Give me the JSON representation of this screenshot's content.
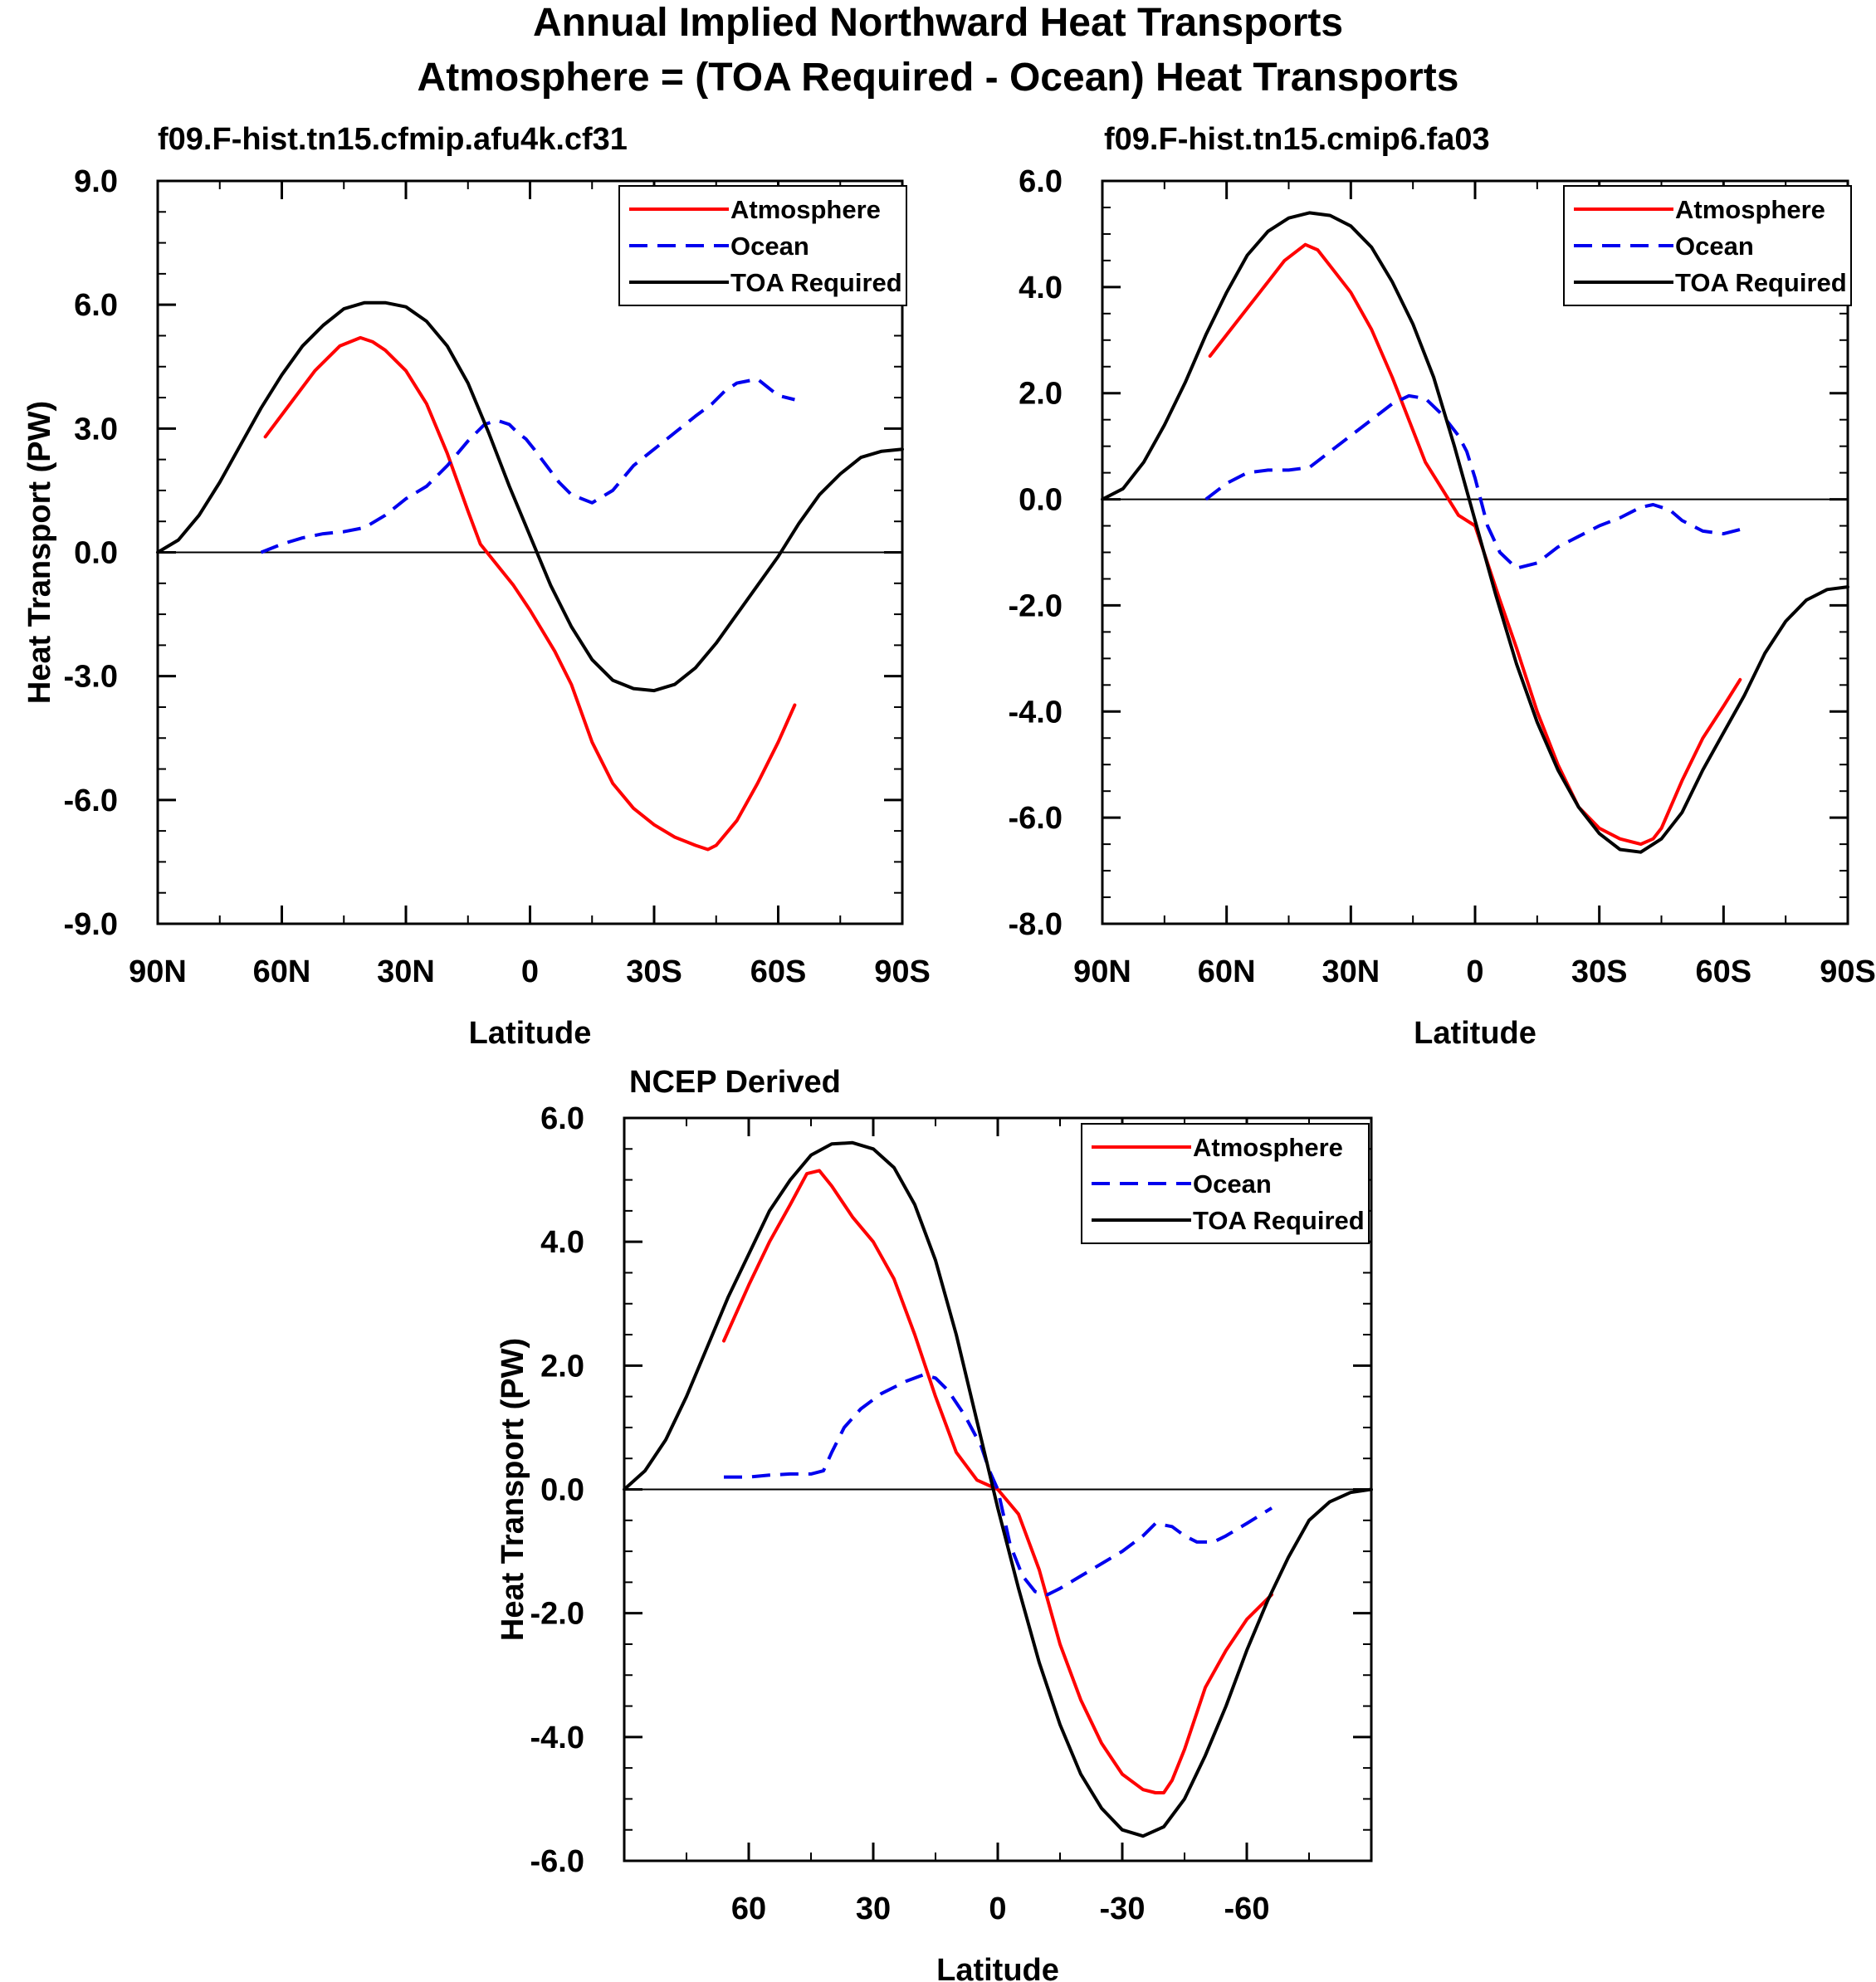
{
  "figure": {
    "title_line1": "Annual Implied Northward Heat Transports",
    "title_line2": "Atmosphere = (TOA Required - Ocean) Heat Transports"
  },
  "colors": {
    "atmosphere": "#ff0000",
    "ocean": "#0000ee",
    "toa": "#000000"
  },
  "chart_data": [
    {
      "type": "line",
      "title": "f09.F-hist.tn15.cfmip.afu4k.cf31",
      "xlabel": "Latitude",
      "ylabel": "Heat Transport (PW)",
      "xlim": [
        90,
        -90
      ],
      "ylim": [
        -9,
        9
      ],
      "xticks": [
        90,
        60,
        30,
        0,
        -30,
        -60,
        -90
      ],
      "xticklabels": [
        "90N",
        "60N",
        "30N",
        "0",
        "30S",
        "60S",
        "90S"
      ],
      "yticks": [
        -9,
        -6,
        -3,
        0,
        3,
        6,
        9
      ],
      "yticklabels": [
        "-9.0",
        "-6.0",
        "-3.0",
        "0.0",
        "3.0",
        "6.0",
        "9.0"
      ],
      "legend": [
        "Atmosphere",
        "Ocean",
        "TOA Required"
      ],
      "series": [
        {
          "name": "Atmosphere",
          "color": "#ff0000",
          "dash": "solid",
          "x": [
            64,
            58,
            52,
            46,
            41,
            38,
            35,
            30,
            25,
            20,
            15,
            12,
            8,
            4,
            0,
            -3,
            -6,
            -10,
            -15,
            -20,
            -25,
            -30,
            -35,
            -40,
            -43,
            -45,
            -50,
            -55,
            -60,
            -64
          ],
          "y": [
            2.8,
            3.6,
            4.4,
            5.0,
            5.2,
            5.1,
            4.9,
            4.4,
            3.6,
            2.4,
            1.0,
            0.2,
            -0.3,
            -0.8,
            -1.4,
            -1.9,
            -2.4,
            -3.2,
            -4.6,
            -5.6,
            -6.2,
            -6.6,
            -6.9,
            -7.1,
            -7.2,
            -7.1,
            -6.5,
            -5.6,
            -4.6,
            -3.7
          ]
        },
        {
          "name": "Ocean",
          "color": "#0000ee",
          "dash": "dashed",
          "x": [
            65,
            60,
            55,
            50,
            45,
            40,
            35,
            30,
            25,
            20,
            15,
            11,
            8,
            5,
            3,
            1,
            -1,
            -4,
            -7,
            -10,
            -15,
            -20,
            -25,
            -30,
            -35,
            -40,
            -44,
            -47,
            -50,
            -55,
            -60,
            -64
          ],
          "y": [
            0.0,
            0.2,
            0.35,
            0.45,
            0.5,
            0.6,
            0.9,
            1.3,
            1.6,
            2.1,
            2.7,
            3.1,
            3.2,
            3.1,
            2.9,
            2.75,
            2.5,
            2.1,
            1.7,
            1.4,
            1.2,
            1.5,
            2.1,
            2.5,
            2.9,
            3.3,
            3.6,
            3.9,
            4.1,
            4.2,
            3.8,
            3.7
          ]
        },
        {
          "name": "TOA Required",
          "color": "#000000",
          "dash": "solid",
          "x": [
            90,
            85,
            80,
            75,
            70,
            65,
            60,
            55,
            50,
            45,
            40,
            35,
            30,
            25,
            20,
            15,
            10,
            5,
            0,
            -5,
            -10,
            -15,
            -20,
            -25,
            -30,
            -35,
            -40,
            -45,
            -50,
            -55,
            -60,
            -65,
            -70,
            -75,
            -80,
            -85,
            -90
          ],
          "y": [
            0.0,
            0.3,
            0.9,
            1.7,
            2.6,
            3.5,
            4.3,
            5.0,
            5.5,
            5.9,
            6.05,
            6.05,
            5.95,
            5.6,
            5.0,
            4.1,
            2.9,
            1.6,
            0.4,
            -0.8,
            -1.8,
            -2.6,
            -3.1,
            -3.3,
            -3.35,
            -3.2,
            -2.8,
            -2.2,
            -1.5,
            -0.8,
            -0.1,
            0.7,
            1.4,
            1.9,
            2.3,
            2.45,
            2.5
          ]
        }
      ]
    },
    {
      "type": "line",
      "title": "f09.F-hist.tn15.cmip6.fa03",
      "xlabel": "Latitude",
      "ylabel": "",
      "xlim": [
        90,
        -90
      ],
      "ylim": [
        -8,
        6
      ],
      "xticks": [
        90,
        60,
        30,
        0,
        -30,
        -60,
        -90
      ],
      "xticklabels": [
        "90N",
        "60N",
        "30N",
        "0",
        "30S",
        "60S",
        "90S"
      ],
      "yticks": [
        -8,
        -6,
        -4,
        -2,
        0,
        2,
        4,
        6
      ],
      "yticklabels": [
        "-8.0",
        "-6.0",
        "-4.0",
        "-2.0",
        "0.0",
        "2.0",
        "4.0",
        "6.0"
      ],
      "legend": [
        "Atmosphere",
        "Ocean",
        "TOA Required"
      ],
      "series": [
        {
          "name": "Atmosphere",
          "color": "#ff0000",
          "dash": "solid",
          "x": [
            64,
            58,
            52,
            46,
            41,
            38,
            35,
            30,
            25,
            20,
            15,
            12,
            8,
            4,
            0,
            -3,
            -6,
            -10,
            -15,
            -20,
            -25,
            -30,
            -35,
            -40,
            -43,
            -45,
            -50,
            -55,
            -60,
            -64
          ],
          "y": [
            2.7,
            3.3,
            3.9,
            4.5,
            4.8,
            4.7,
            4.4,
            3.9,
            3.2,
            2.3,
            1.3,
            0.7,
            0.2,
            -0.3,
            -0.5,
            -1.2,
            -1.9,
            -2.8,
            -4.0,
            -5.0,
            -5.8,
            -6.2,
            -6.4,
            -6.5,
            -6.4,
            -6.2,
            -5.3,
            -4.5,
            -3.9,
            -3.4
          ]
        },
        {
          "name": "Ocean",
          "color": "#0000ee",
          "dash": "dashed",
          "x": [
            65,
            60,
            55,
            50,
            45,
            40,
            35,
            30,
            25,
            20,
            16,
            12,
            8,
            4,
            2,
            0,
            -3,
            -6,
            -10,
            -15,
            -20,
            -25,
            -30,
            -35,
            -40,
            -43,
            -47,
            -50,
            -55,
            -60,
            -65
          ],
          "y": [
            0.0,
            0.3,
            0.5,
            0.55,
            0.55,
            0.6,
            0.9,
            1.2,
            1.5,
            1.8,
            1.95,
            1.9,
            1.6,
            1.2,
            0.9,
            0.4,
            -0.5,
            -1.0,
            -1.3,
            -1.2,
            -0.9,
            -0.7,
            -0.5,
            -0.35,
            -0.15,
            -0.1,
            -0.2,
            -0.4,
            -0.6,
            -0.65,
            -0.55
          ]
        },
        {
          "name": "TOA Required",
          "color": "#000000",
          "dash": "solid",
          "x": [
            90,
            85,
            80,
            75,
            70,
            65,
            60,
            55,
            50,
            45,
            40,
            35,
            30,
            25,
            20,
            15,
            10,
            5,
            0,
            -5,
            -10,
            -15,
            -20,
            -25,
            -30,
            -35,
            -40,
            -45,
            -50,
            -55,
            -60,
            -65,
            -70,
            -75,
            -80,
            -85,
            -90
          ],
          "y": [
            0.0,
            0.2,
            0.7,
            1.4,
            2.2,
            3.1,
            3.9,
            4.6,
            5.05,
            5.3,
            5.4,
            5.35,
            5.15,
            4.75,
            4.1,
            3.3,
            2.3,
            1.0,
            -0.4,
            -1.8,
            -3.1,
            -4.2,
            -5.1,
            -5.8,
            -6.3,
            -6.6,
            -6.65,
            -6.4,
            -5.9,
            -5.1,
            -4.4,
            -3.7,
            -2.9,
            -2.3,
            -1.9,
            -1.7,
            -1.65
          ]
        }
      ]
    },
    {
      "type": "line",
      "title": "NCEP Derived",
      "xlabel": "Latitude",
      "ylabel": "Heat Transport (PW)",
      "xlim": [
        90,
        -90
      ],
      "ylim": [
        -6,
        6
      ],
      "xticks": [
        60,
        30,
        0,
        -30,
        -60
      ],
      "xticklabels": [
        "60",
        "30",
        "0",
        "-30",
        "-60"
      ],
      "yticks": [
        -6,
        -4,
        -2,
        0,
        2,
        4,
        6
      ],
      "yticklabels": [
        "-6.0",
        "-4.0",
        "-2.0",
        "0.0",
        "2.0",
        "4.0",
        "6.0"
      ],
      "legend": [
        "Atmosphere",
        "Ocean",
        "TOA Required"
      ],
      "series": [
        {
          "name": "Atmosphere",
          "color": "#ff0000",
          "dash": "solid",
          "x": [
            66,
            60,
            55,
            50,
            46,
            43,
            40,
            35,
            30,
            25,
            20,
            15,
            10,
            5,
            0,
            -5,
            -10,
            -15,
            -20,
            -25,
            -30,
            -35,
            -38,
            -40,
            -42,
            -45,
            -50,
            -55,
            -60,
            -66
          ],
          "y": [
            2.4,
            3.3,
            4.0,
            4.6,
            5.1,
            5.15,
            4.9,
            4.4,
            4.0,
            3.4,
            2.5,
            1.5,
            0.6,
            0.15,
            0.0,
            -0.4,
            -1.3,
            -2.5,
            -3.4,
            -4.1,
            -4.6,
            -4.85,
            -4.9,
            -4.9,
            -4.7,
            -4.2,
            -3.2,
            -2.6,
            -2.1,
            -1.7
          ]
        },
        {
          "name": "Ocean",
          "color": "#0000ee",
          "dash": "dashed",
          "x": [
            66,
            60,
            55,
            50,
            45,
            42,
            40,
            37,
            33,
            28,
            22,
            18,
            15,
            12,
            8,
            4,
            2,
            0,
            -3,
            -6,
            -9,
            -12,
            -15,
            -20,
            -25,
            -30,
            -35,
            -38,
            -42,
            -45,
            -48,
            -52,
            -55,
            -60,
            -66
          ],
          "y": [
            0.2,
            0.2,
            0.23,
            0.25,
            0.25,
            0.3,
            0.6,
            1.0,
            1.3,
            1.55,
            1.75,
            1.85,
            1.8,
            1.6,
            1.2,
            0.7,
            0.3,
            0.0,
            -0.9,
            -1.4,
            -1.65,
            -1.7,
            -1.6,
            -1.4,
            -1.2,
            -1.0,
            -0.75,
            -0.55,
            -0.6,
            -0.75,
            -0.85,
            -0.85,
            -0.75,
            -0.55,
            -0.3
          ]
        },
        {
          "name": "TOA Required",
          "color": "#000000",
          "dash": "solid",
          "x": [
            90,
            85,
            80,
            75,
            70,
            65,
            60,
            55,
            50,
            45,
            40,
            35,
            30,
            25,
            20,
            15,
            10,
            5,
            0,
            -5,
            -10,
            -15,
            -20,
            -25,
            -30,
            -35,
            -40,
            -45,
            -50,
            -55,
            -60,
            -65,
            -70,
            -75,
            -80,
            -85,
            -90
          ],
          "y": [
            0.0,
            0.3,
            0.8,
            1.5,
            2.3,
            3.1,
            3.8,
            4.5,
            5.0,
            5.4,
            5.58,
            5.6,
            5.5,
            5.2,
            4.6,
            3.7,
            2.5,
            1.1,
            -0.3,
            -1.6,
            -2.8,
            -3.8,
            -4.6,
            -5.15,
            -5.5,
            -5.6,
            -5.45,
            -5.0,
            -4.3,
            -3.5,
            -2.6,
            -1.8,
            -1.1,
            -0.5,
            -0.2,
            -0.05,
            0.0
          ]
        }
      ]
    }
  ]
}
